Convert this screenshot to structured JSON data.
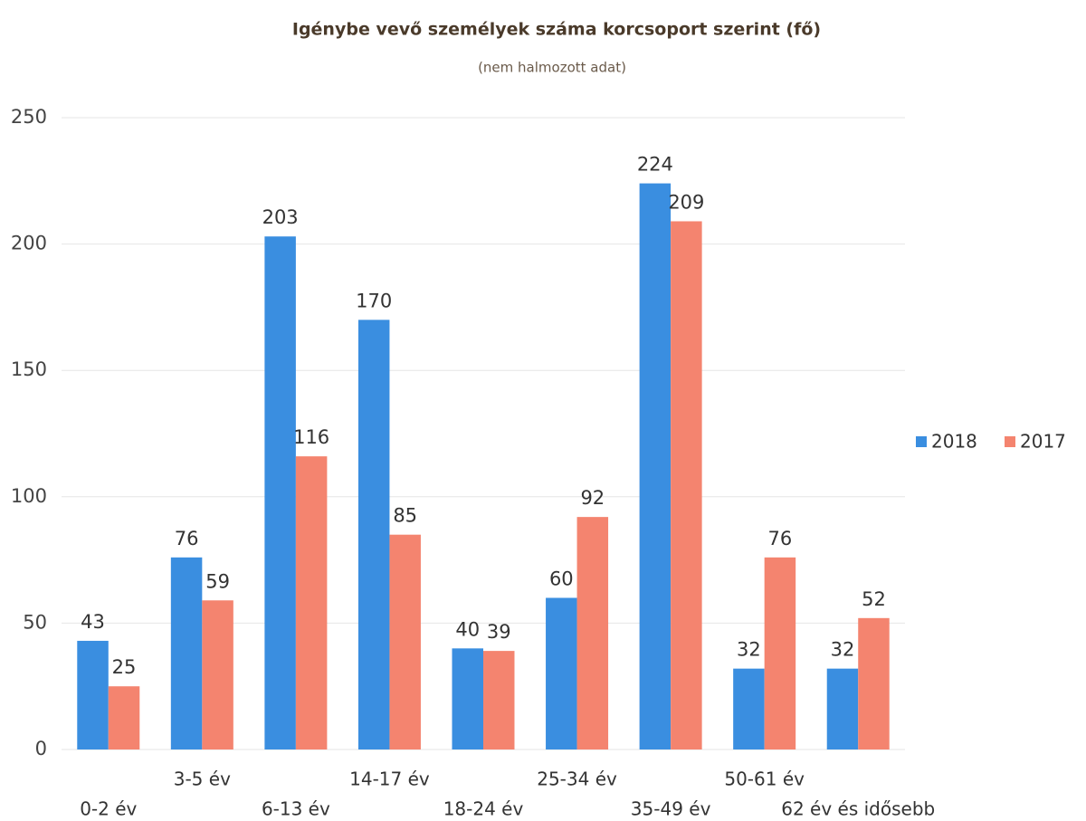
{
  "chart_data": {
    "type": "bar",
    "title": "Igénybe vevő személyek száma korcsoport szerint (fő)",
    "subtitle": "(nem halmozott adat)",
    "categories": [
      "0-2 év",
      "3-5 év",
      "6-13 év",
      "14-17 év",
      "18-24 év",
      "25-34 év",
      "35-49 év",
      "50-61 év",
      "62 év és idősebb"
    ],
    "series": [
      {
        "name": "2018",
        "color": "#3a8ee0",
        "values": [
          43,
          76,
          203,
          170,
          40,
          60,
          224,
          32,
          32
        ]
      },
      {
        "name": "2017",
        "color": "#f4846f",
        "values": [
          25,
          59,
          116,
          85,
          39,
          92,
          209,
          76,
          52
        ]
      }
    ],
    "ylim": [
      0,
      250
    ],
    "yticks": [
      0,
      50,
      100,
      150,
      200,
      250
    ],
    "grid": true,
    "legend": "right"
  }
}
